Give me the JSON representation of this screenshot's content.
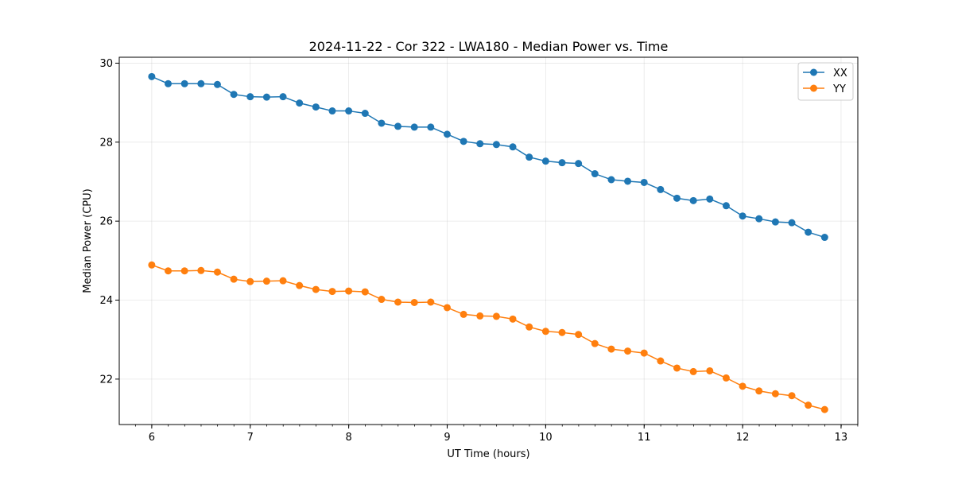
{
  "chart_data": {
    "type": "line",
    "title": "2024-11-22 - Cor 322 - LWA180 - Median Power vs. Time",
    "xlabel": "UT Time (hours)",
    "ylabel": "Median Power (CPU)",
    "xlim": [
      5.67,
      13.17
    ],
    "ylim": [
      20.85,
      30.15
    ],
    "xticks": [
      6,
      7,
      8,
      9,
      10,
      11,
      12,
      13
    ],
    "xtick_labels": [
      "6",
      "7",
      "8",
      "9",
      "10",
      "11",
      "12",
      "13"
    ],
    "xminor_step": 0.1667,
    "yticks": [
      22,
      24,
      26,
      28,
      30
    ],
    "ytick_labels": [
      "22",
      "24",
      "26",
      "28",
      "30"
    ],
    "grid": true,
    "legend_position": "top-right",
    "x": [
      6.0,
      6.1667,
      6.3333,
      6.5,
      6.6667,
      6.8333,
      7.0,
      7.1667,
      7.3333,
      7.5,
      7.6667,
      7.8333,
      8.0,
      8.1667,
      8.3333,
      8.5,
      8.6667,
      8.8333,
      9.0,
      9.1667,
      9.3333,
      9.5,
      9.6667,
      9.8333,
      10.0,
      10.1667,
      10.3333,
      10.5,
      10.6667,
      10.8333,
      11.0,
      11.1667,
      11.3333,
      11.5,
      11.6667,
      11.8333,
      12.0,
      12.1667,
      12.3333,
      12.5,
      12.6667,
      12.8333
    ],
    "series": [
      {
        "name": "XX",
        "color": "#1f77b4",
        "values": [
          29.66,
          29.48,
          29.48,
          29.48,
          29.46,
          29.21,
          29.15,
          29.14,
          29.15,
          28.99,
          28.89,
          28.79,
          28.79,
          28.73,
          28.48,
          28.4,
          28.38,
          28.38,
          28.2,
          28.02,
          27.96,
          27.94,
          27.88,
          27.62,
          27.52,
          27.48,
          27.46,
          27.2,
          27.05,
          27.01,
          26.98,
          26.8,
          26.58,
          26.52,
          26.56,
          26.39,
          26.13,
          26.06,
          25.98,
          25.96,
          25.72,
          25.59
        ]
      },
      {
        "name": "YY",
        "color": "#ff7f0e",
        "values": [
          24.89,
          24.74,
          24.74,
          24.75,
          24.71,
          24.53,
          24.47,
          24.48,
          24.49,
          24.37,
          24.27,
          24.22,
          24.23,
          24.21,
          24.02,
          23.95,
          23.94,
          23.95,
          23.81,
          23.64,
          23.6,
          23.59,
          23.52,
          23.32,
          23.21,
          23.18,
          23.13,
          22.9,
          22.76,
          22.71,
          22.66,
          22.46,
          22.28,
          22.19,
          22.21,
          22.03,
          21.82,
          21.7,
          21.63,
          21.58,
          21.34,
          21.23
        ]
      }
    ]
  }
}
